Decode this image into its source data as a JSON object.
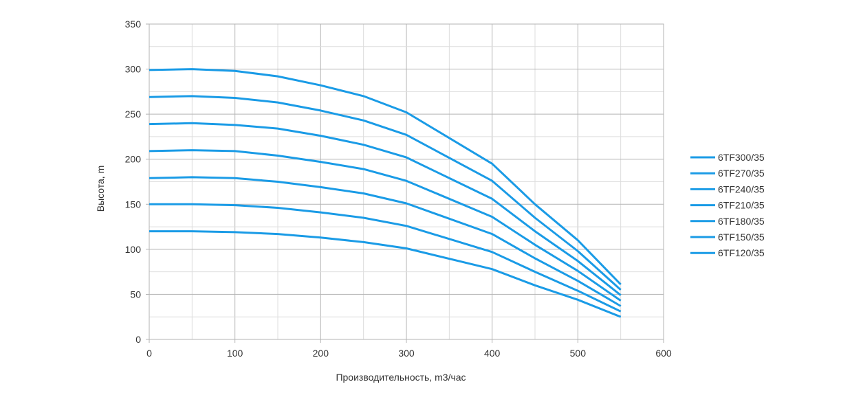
{
  "chart_data": {
    "type": "line",
    "title": "",
    "xlabel": "Производительность, m3/час",
    "ylabel": "Высота, m",
    "xlim": [
      0,
      600
    ],
    "ylim": [
      0,
      350
    ],
    "xticks": [
      0,
      100,
      200,
      300,
      400,
      500,
      600
    ],
    "yticks": [
      0,
      50,
      100,
      150,
      200,
      250,
      300,
      350
    ],
    "grid": true,
    "legend_position": "right",
    "series_color": "#1a9be6",
    "x": [
      0,
      50,
      100,
      150,
      200,
      250,
      300,
      400,
      450,
      500,
      550
    ],
    "series": [
      {
        "name": "6TF300/35",
        "values": [
          299,
          300,
          298,
          292,
          282,
          270,
          252,
          195,
          150,
          110,
          61
        ]
      },
      {
        "name": "6TF270/35",
        "values": [
          269,
          270,
          268,
          263,
          254,
          243,
          227,
          176,
          135,
          98,
          55
        ]
      },
      {
        "name": "6TF240/35",
        "values": [
          239,
          240,
          238,
          234,
          226,
          216,
          202,
          156,
          120,
          87,
          49
        ]
      },
      {
        "name": "6TF210/35",
        "values": [
          209,
          210,
          209,
          204,
          197,
          189,
          176,
          136,
          105,
          76,
          43
        ]
      },
      {
        "name": "6TF180/35",
        "values": [
          179,
          180,
          179,
          175,
          169,
          162,
          151,
          117,
          90,
          65,
          37
        ]
      },
      {
        "name": "6TF150/35",
        "values": [
          150,
          150,
          149,
          146,
          141,
          135,
          126,
          97,
          75,
          54,
          31
        ]
      },
      {
        "name": "6TF120/35",
        "values": [
          120,
          120,
          119,
          117,
          113,
          108,
          101,
          78,
          60,
          44,
          25
        ]
      }
    ]
  }
}
